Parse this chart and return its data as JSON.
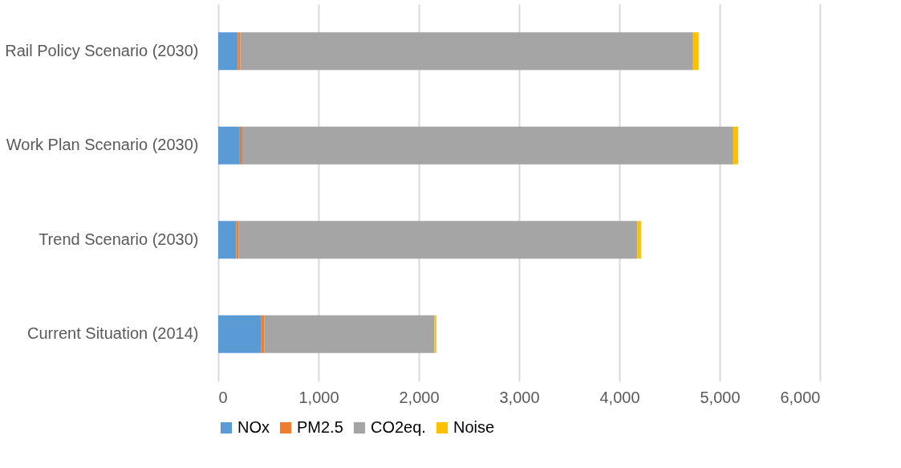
{
  "chart_data": {
    "type": "bar",
    "orientation": "horizontal",
    "stacked": true,
    "categories": [
      "Rail Policy Scenario (2030)",
      "Work Plan Scenario (2030)",
      "Trend Scenario (2030)",
      "Current Situation (2014)"
    ],
    "series": [
      {
        "name": "NOx",
        "color": "#5b9bd5",
        "values": [
          195,
          215,
          180,
          430
        ]
      },
      {
        "name": "PM2.5",
        "color": "#ed7d31",
        "values": [
          25,
          25,
          25,
          30
        ]
      },
      {
        "name": "CO2eq.",
        "color": "#a5a5a5",
        "values": [
          4515,
          4895,
          3975,
          1695
        ]
      },
      {
        "name": "Noise",
        "color": "#ffc000",
        "values": [
          55,
          50,
          35,
          20
        ]
      }
    ],
    "xlim": [
      0,
      6000
    ],
    "xticks": [
      {
        "value": 0,
        "label": "0"
      },
      {
        "value": 1000,
        "label": "1,000"
      },
      {
        "value": 2000,
        "label": "2,000"
      },
      {
        "value": 3000,
        "label": "3,000"
      },
      {
        "value": 4000,
        "label": "4,000"
      },
      {
        "value": 5000,
        "label": "5,000"
      },
      {
        "value": 6000,
        "label": "6,000"
      }
    ],
    "grid": "x",
    "legend": "bottom"
  }
}
